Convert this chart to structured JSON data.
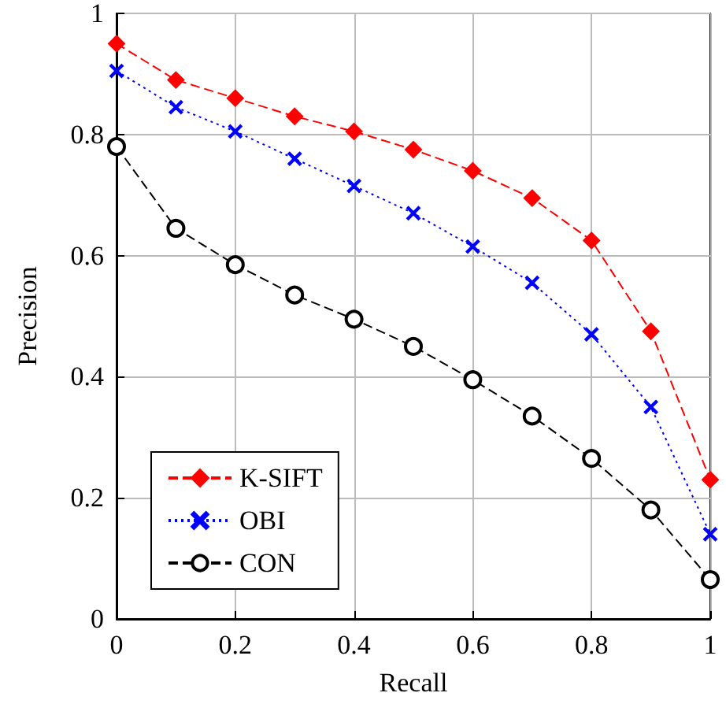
{
  "chart_data": {
    "type": "line",
    "xlabel": "Recall",
    "ylabel": "Precision",
    "x": [
      0,
      0.1,
      0.2,
      0.3,
      0.4,
      0.5,
      0.6,
      0.7,
      0.8,
      0.9,
      1
    ],
    "series": [
      {
        "name": "K-SIFT",
        "color": "#ff0000",
        "marker": "diamond",
        "line_style": "dashed",
        "values": [
          0.95,
          0.89,
          0.86,
          0.83,
          0.805,
          0.775,
          0.74,
          0.695,
          0.625,
          0.475,
          0.23
        ]
      },
      {
        "name": "OBI",
        "color": "#0000ff",
        "marker": "cross",
        "line_style": "dotted",
        "values": [
          0.905,
          0.845,
          0.805,
          0.76,
          0.715,
          0.67,
          0.615,
          0.555,
          0.47,
          0.35,
          0.14
        ]
      },
      {
        "name": "CON",
        "color": "#000000",
        "marker": "circle",
        "line_style": "dashed",
        "values": [
          0.78,
          0.645,
          0.585,
          0.535,
          0.495,
          0.45,
          0.395,
          0.335,
          0.265,
          0.18,
          0.065
        ]
      }
    ],
    "xlim": [
      0,
      1
    ],
    "xticks": [
      0,
      0.2,
      0.4,
      0.6,
      0.8,
      1
    ],
    "ylim": [
      0,
      1
    ],
    "yticks": [
      0,
      0.2,
      0.4,
      0.6,
      0.8,
      1
    ],
    "grid": true,
    "legend": "bottom left"
  }
}
